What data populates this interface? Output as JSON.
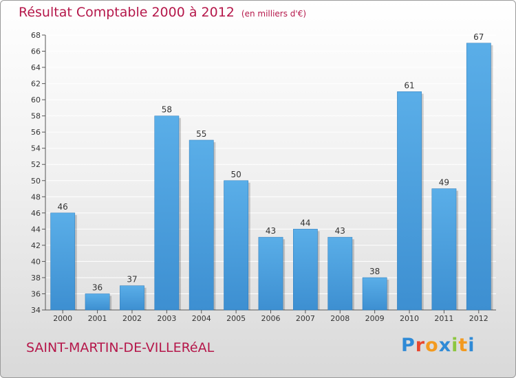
{
  "header": {
    "title": "Résultat Comptable 2000 à 2012",
    "unit": "(en milliers d'€)"
  },
  "footer": {
    "commune": "SAINT-MARTIN-DE-VILLERéAL",
    "logo_letters": [
      "P",
      "r",
      "o",
      "x",
      "i",
      "t",
      "i"
    ],
    "logo_colors": [
      "#2f8ad6",
      "#e8462e",
      "#f39a1f",
      "#2f8ad6",
      "#8cc63f",
      "#f39a1f",
      "#2f8ad6"
    ]
  },
  "chart_data": {
    "type": "bar",
    "title": "Résultat Comptable 2000 à 2012",
    "categories": [
      "2000",
      "2001",
      "2002",
      "2003",
      "2004",
      "2005",
      "2006",
      "2007",
      "2008",
      "2009",
      "2010",
      "2011",
      "2012"
    ],
    "values": [
      46,
      36,
      37,
      58,
      55,
      50,
      43,
      44,
      43,
      38,
      61,
      49,
      67
    ],
    "xlabel": "",
    "ylabel": "",
    "ylim": [
      34,
      68
    ],
    "yticks": [
      34,
      36,
      38,
      40,
      42,
      44,
      46,
      48,
      50,
      52,
      54,
      56,
      58,
      60,
      62,
      64,
      66,
      68
    ],
    "grid": true,
    "bar_color": "#3d8fd1",
    "bar_color_light": "#5aaee8",
    "grid_color": "#ffffff"
  }
}
